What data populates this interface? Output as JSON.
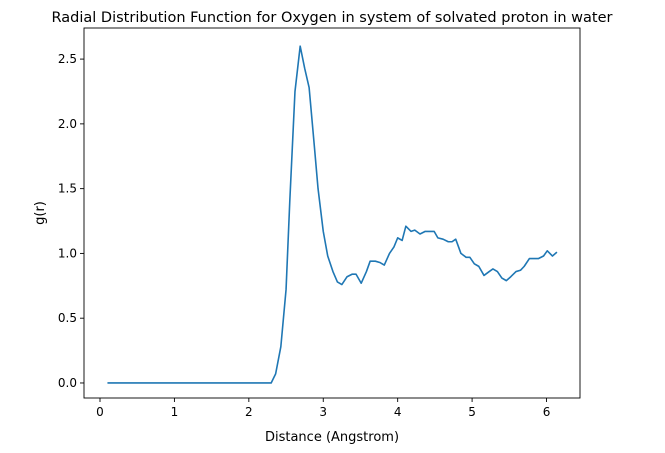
{
  "chart_data": {
    "type": "line",
    "title": "Radial Distribution Function for Oxygen in system of solvated proton in water",
    "x_label": "Distance (Angstrom)",
    "y_label": "g(r)",
    "x": [
      0.1,
      1.0,
      2.0,
      2.3,
      2.36,
      2.43,
      2.5,
      2.55,
      2.62,
      2.69,
      2.75,
      2.81,
      2.88,
      2.93,
      3.0,
      3.06,
      3.13,
      3.19,
      3.25,
      3.32,
      3.39,
      3.44,
      3.51,
      3.58,
      3.63,
      3.7,
      3.76,
      3.82,
      3.89,
      3.95,
      4.0,
      4.06,
      4.11,
      4.18,
      4.23,
      4.3,
      4.37,
      4.44,
      4.49,
      4.54,
      4.61,
      4.68,
      4.73,
      4.78,
      4.85,
      4.92,
      4.97,
      5.03,
      5.09,
      5.16,
      5.23,
      5.28,
      5.34,
      5.4,
      5.46,
      5.52,
      5.59,
      5.65,
      5.7,
      5.77,
      5.84,
      5.89,
      5.96,
      6.01,
      6.08,
      6.14
    ],
    "series": [
      {
        "name": "g(r)",
        "color": "#1f77b4",
        "values": [
          0,
          0,
          0,
          0,
          0.07,
          0.28,
          0.72,
          1.4,
          2.25,
          2.6,
          2.43,
          2.28,
          1.83,
          1.5,
          1.17,
          0.98,
          0.86,
          0.78,
          0.76,
          0.82,
          0.84,
          0.84,
          0.77,
          0.86,
          0.94,
          0.94,
          0.93,
          0.91,
          1.0,
          1.05,
          1.12,
          1.1,
          1.21,
          1.17,
          1.18,
          1.15,
          1.17,
          1.17,
          1.17,
          1.12,
          1.11,
          1.09,
          1.09,
          1.11,
          1.0,
          0.97,
          0.97,
          0.92,
          0.9,
          0.83,
          0.86,
          0.88,
          0.86,
          0.81,
          0.79,
          0.82,
          0.86,
          0.87,
          0.9,
          0.96,
          0.96,
          0.96,
          0.98,
          1.02,
          0.98,
          1.01
        ]
      }
    ],
    "xlim": [
      -0.215,
      6.45
    ],
    "ylim": [
      -0.116,
      2.74
    ],
    "xticks": [
      0,
      1,
      2,
      3,
      4,
      5,
      6
    ],
    "yticks": [
      {
        "value": 0,
        "label": "0.0"
      },
      {
        "value": 0.5,
        "label": "0.5"
      },
      {
        "value": 1,
        "label": "1.0"
      },
      {
        "value": 1.5,
        "label": "1.5"
      },
      {
        "value": 2,
        "label": "2.0"
      },
      {
        "value": 2.5,
        "label": "2.5"
      }
    ]
  }
}
